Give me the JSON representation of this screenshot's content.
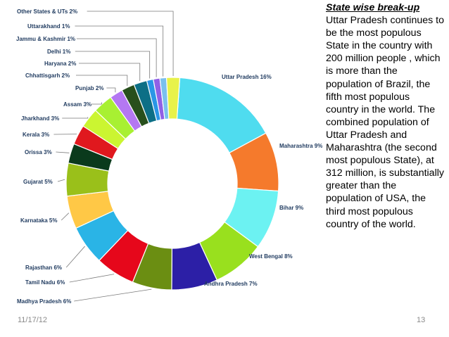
{
  "chart_data": {
    "type": "pie",
    "labels": [
      "Uttar Pradesh",
      "Maharashtra",
      "Bihar",
      "West Bengal",
      "Andhra Pradesh",
      "Madhya Pradesh",
      "Tamil Nadu",
      "Rajasthan",
      "Karnataka",
      "Gujarat",
      "Orissa",
      "Kerala",
      "Jharkhand",
      "Assam",
      "Punjab",
      "Chhattisgarh",
      "Haryana",
      "Delhi",
      "Jammu & Kashmir",
      "Uttarakhand",
      "Other States & UTs"
    ],
    "values": [
      16,
      9,
      9,
      8,
      7,
      6,
      6,
      6,
      5,
      5,
      3,
      3,
      3,
      3,
      2,
      2,
      2,
      1,
      1,
      1,
      2
    ],
    "display_labels": [
      "Uttar Pradesh 16%",
      "Maharashtra 9%",
      "Bihar 9%",
      "West Bengal 8%",
      "Andhra Pradesh 7%",
      "Madhya Pradesh 6%",
      "Tamil Nadu 6%",
      "Rajasthan 6%",
      "Karnataka 5%",
      "Gujarat 5%",
      "Orissa 3%",
      "Kerala 3%",
      "Jharkhand 3%",
      "Assam 3%",
      "Punjab 2%",
      "Chhattisgarh 2%",
      "Haryana 2%",
      "Delhi 1%",
      "Jammu & Kashmir 1%",
      "Uttarakhand 1%",
      "Other States & UTs 2%"
    ],
    "colors": [
      "#4fdcef",
      "#f57a2c",
      "#6cf2f2",
      "#99e01e",
      "#2c1fa6",
      "#6b8e12",
      "#e6071b",
      "#2ab4e6",
      "#ffc846",
      "#9ac01a",
      "#0a3a1c",
      "#e0181e",
      "#cbf531",
      "#a8f032",
      "#b478f2",
      "#284f1c",
      "#0c6f86",
      "#2a96e6",
      "#9060e6",
      "#7ac0ee",
      "#e8f24a"
    ],
    "chart_type_detail": "donut",
    "legend": "callout labels around the ring"
  },
  "text_panel": {
    "title": "State wise break-up",
    "body": "Uttar Pradesh continues to be the most populous State in the country with 200 million people , which is more than the population of Brazil, the fifth most populous country in the world. The combined population of Uttar Pradesh and Maharashtra (the second most populous State), at 312 million, is substantially greater than the population of USA, the third most populous country of the world."
  },
  "footer": {
    "date": "11/17/12",
    "page_number": "13"
  }
}
